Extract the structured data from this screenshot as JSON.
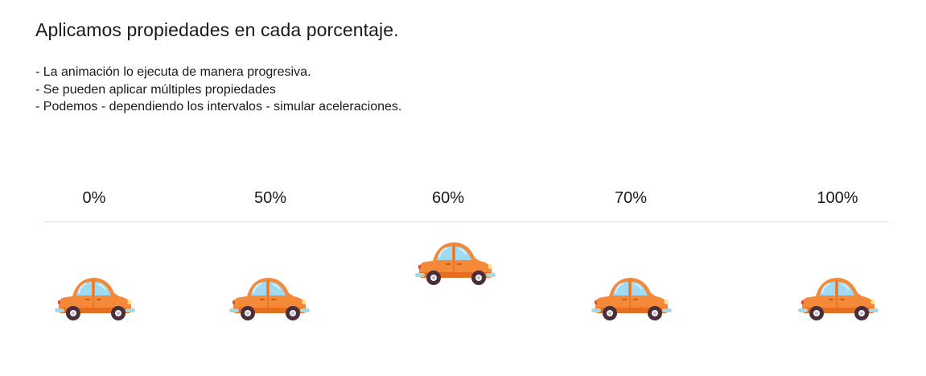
{
  "title": "Aplicamos propiedades en cada porcentaje.",
  "bullets": [
    "- La animación lo ejecuta de manera progresiva.",
    "- Se pueden aplicar múltiples propiedades",
    "- Podemos - dependiendo los intervalos - simular aceleraciones."
  ],
  "keyframes": [
    {
      "label": "0%"
    },
    {
      "label": "50%"
    },
    {
      "label": "60%"
    },
    {
      "label": "70%"
    },
    {
      "label": "100%"
    }
  ],
  "colors": {
    "car_body": "#f5893a",
    "car_body_dark": "#e56f1f",
    "window": "#9fd9f2",
    "wheel": "#4a2f3a",
    "hubcap": "#f2f2f2",
    "bumper": "#a9d7df",
    "divider": "#dcdcdc"
  },
  "icon": "car-icon"
}
